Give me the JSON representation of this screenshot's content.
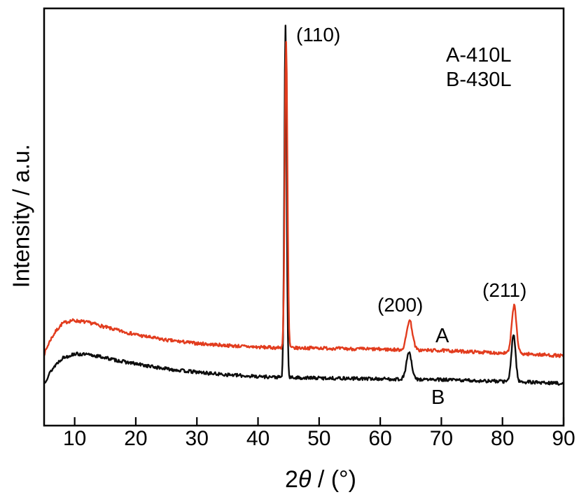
{
  "axes": {
    "x_label_prefix": "2",
    "x_label_theta": "θ",
    "x_label_suffix": " / (°)",
    "y_label": "Intensity / a.u."
  },
  "legend": {
    "line1": "A-410L",
    "line2": "B-430L"
  },
  "annotations": {
    "peak_110": "(110)",
    "peak_200": "(200)",
    "peak_211": "(211)",
    "curve_a_marker": "A",
    "curve_b_marker": "B"
  },
  "colors": {
    "series_a": "#e23c1e",
    "series_b": "#0d0d0d",
    "frame": "#000000",
    "background": "#ffffff"
  },
  "chart_data": {
    "type": "line",
    "title": "",
    "xlabel": "2θ / (°)",
    "ylabel": "Intensity / a.u.",
    "xlim": [
      5,
      90
    ],
    "ylim_units": "arbitrary (0-1 of plot height)",
    "x_ticks": [
      10,
      20,
      30,
      40,
      50,
      60,
      70,
      80,
      90
    ],
    "y_ticks": [],
    "grid": false,
    "legend_position": "top-right",
    "series": [
      {
        "name": "B",
        "legend_label": "B-430L",
        "color": "#0d0d0d",
        "noise": 0.004,
        "seed": 13,
        "baseline_points": [
          [
            5,
            0.101
          ],
          [
            6,
            0.128
          ],
          [
            7,
            0.148
          ],
          [
            8,
            0.162
          ],
          [
            10,
            0.172
          ],
          [
            12,
            0.17
          ],
          [
            14,
            0.166
          ],
          [
            17,
            0.156
          ],
          [
            20,
            0.148
          ],
          [
            24,
            0.138
          ],
          [
            28,
            0.131
          ],
          [
            33,
            0.124
          ],
          [
            38,
            0.119
          ],
          [
            45,
            0.115
          ],
          [
            50,
            0.114
          ],
          [
            55,
            0.113
          ],
          [
            60,
            0.112
          ],
          [
            65,
            0.111
          ],
          [
            70,
            0.11
          ],
          [
            75,
            0.108
          ],
          [
            80,
            0.106
          ],
          [
            85,
            0.104
          ],
          [
            90,
            0.101
          ]
        ],
        "peaks": [
          {
            "hkl": "(110)",
            "two_theta": 44.5,
            "height": 0.842,
            "fwhm": 0.45
          },
          {
            "hkl": "(200)",
            "two_theta": 64.7,
            "height": 0.064,
            "fwhm": 1.0
          },
          {
            "hkl": "(211)",
            "two_theta": 81.8,
            "height": 0.113,
            "fwhm": 0.8
          }
        ]
      },
      {
        "name": "A",
        "legend_label": "A-410L",
        "color": "#e23c1e",
        "noise": 0.004,
        "seed": 7,
        "baseline_points": [
          [
            5,
            0.171
          ],
          [
            6,
            0.205
          ],
          [
            7,
            0.228
          ],
          [
            8,
            0.245
          ],
          [
            9.5,
            0.252
          ],
          [
            11,
            0.25
          ],
          [
            13,
            0.245
          ],
          [
            15,
            0.236
          ],
          [
            18,
            0.225
          ],
          [
            21,
            0.215
          ],
          [
            25,
            0.205
          ],
          [
            30,
            0.197
          ],
          [
            35,
            0.192
          ],
          [
            40,
            0.188
          ],
          [
            45,
            0.186
          ],
          [
            50,
            0.186
          ],
          [
            55,
            0.184
          ],
          [
            60,
            0.183
          ],
          [
            65,
            0.181
          ],
          [
            70,
            0.18
          ],
          [
            75,
            0.177
          ],
          [
            80,
            0.174
          ],
          [
            85,
            0.171
          ],
          [
            90,
            0.167
          ]
        ],
        "peaks": [
          {
            "hkl": "(110)",
            "two_theta": 44.6,
            "height": 0.733,
            "fwhm": 0.5
          },
          {
            "hkl": "(200)",
            "two_theta": 64.8,
            "height": 0.071,
            "fwhm": 1.1
          },
          {
            "hkl": "(211)",
            "two_theta": 81.9,
            "height": 0.115,
            "fwhm": 0.9
          }
        ]
      }
    ]
  }
}
